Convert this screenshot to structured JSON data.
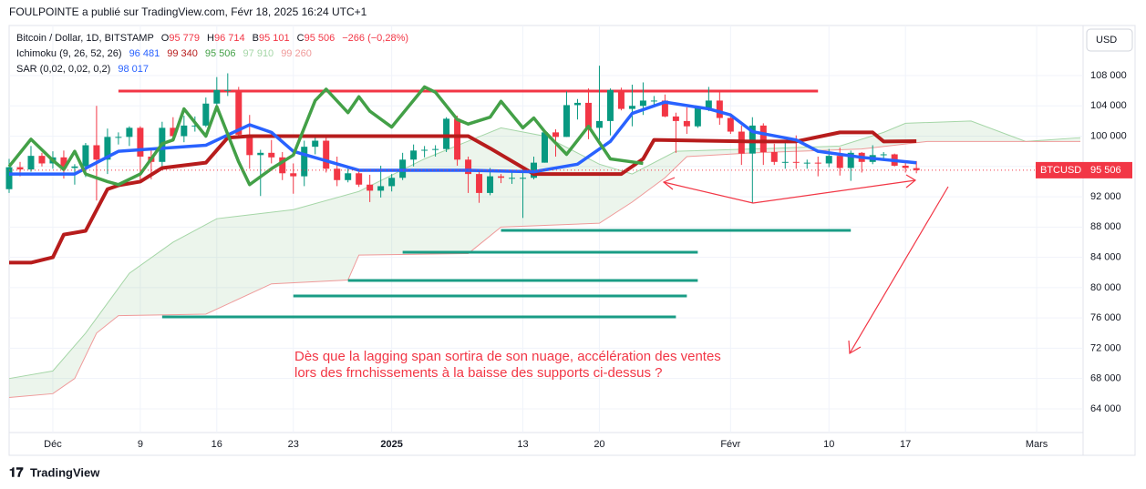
{
  "header": {
    "attribution": "FOULPOINTE a publié sur TradingView.com, Févr 18, 2025 16:24 UTC+1",
    "symbol": "Bitcoin / Dollar, 1D, BITSTAMP",
    "ohlc": [
      {
        "k": "O",
        "v": "95 779"
      },
      {
        "k": "H",
        "v": "96 714"
      },
      {
        "k": "B",
        "v": "95 101"
      },
      {
        "k": "C",
        "v": "95 506"
      },
      {
        "k": "",
        "v": "−266 (−0,28%)"
      }
    ],
    "indicators": [
      {
        "label": "Ichimoku (9, 26, 52, 26)",
        "values": [
          {
            "text": "96 481",
            "color": "#2962ff"
          },
          {
            "text": "99 340",
            "color": "#b71c1c"
          },
          {
            "text": "95 506",
            "color": "#43a047"
          },
          {
            "text": "97 910",
            "color": "#a5d6a7"
          },
          {
            "text": "99 260",
            "color": "#ef9a9a"
          }
        ]
      },
      {
        "label": "SAR (0,02, 0,02, 0,2)",
        "values": [
          {
            "text": "98 017",
            "color": "#2962ff"
          }
        ]
      }
    ],
    "currency": "USD",
    "price_label": {
      "symbol": "BTCUSD",
      "value": "95 506"
    },
    "logo": "TradingView"
  },
  "chart_data": {
    "type": "candlestick",
    "up_color": "#089981",
    "down_color": "#f23645",
    "ylim": [
      61470,
      114370
    ],
    "xlim": [
      -4,
      94
    ],
    "yticks": [
      {
        "value": 64000,
        "label": "64 000"
      },
      {
        "value": 68000,
        "label": "68 000"
      },
      {
        "value": 72000,
        "label": "72 000"
      },
      {
        "value": 76000,
        "label": "76 000"
      },
      {
        "value": 80000,
        "label": "80 000"
      },
      {
        "value": 84000,
        "label": "84 000"
      },
      {
        "value": 88000,
        "label": "88 000"
      },
      {
        "value": 92000,
        "label": "92 000"
      },
      {
        "value": 96000,
        "label": "96 000"
      },
      {
        "value": 100000,
        "label": "100 000"
      },
      {
        "value": 104000,
        "label": "104 000"
      },
      {
        "value": 108000,
        "label": "108 000"
      }
    ],
    "xticks": [
      {
        "value": 0,
        "label": "Déc"
      },
      {
        "value": 8,
        "label": "9"
      },
      {
        "value": 15,
        "label": "16"
      },
      {
        "value": 22,
        "label": "23"
      },
      {
        "value": 31,
        "label": "2025"
      },
      {
        "value": 43,
        "label": "13"
      },
      {
        "value": 50,
        "label": "20"
      },
      {
        "value": 62,
        "label": "Févr"
      },
      {
        "value": 71,
        "label": "10"
      },
      {
        "value": 78,
        "label": "17"
      },
      {
        "value": 90,
        "label": "Mars"
      }
    ],
    "x": [
      -4,
      -3,
      -2,
      -1,
      0,
      1,
      2,
      3,
      4,
      5,
      6,
      7,
      8,
      9,
      10,
      11,
      12,
      13,
      14,
      15,
      16,
      17,
      18,
      19,
      20,
      21,
      22,
      23,
      24,
      25,
      26,
      27,
      28,
      29,
      30,
      31,
      32,
      33,
      34,
      35,
      36,
      37,
      38,
      39,
      40,
      41,
      42,
      43,
      44,
      45,
      46,
      47,
      48,
      49,
      50,
      51,
      52,
      53,
      54,
      55,
      56,
      57,
      58,
      59,
      60,
      61,
      62,
      63,
      64,
      65,
      66,
      67,
      68,
      69,
      70,
      71,
      72,
      73,
      74,
      75,
      76,
      77,
      78,
      79
    ],
    "candles": [
      [
        93000,
        97000,
        92500,
        95900
      ],
      [
        95900,
        96600,
        94700,
        95600
      ],
      [
        95600,
        98700,
        95300,
        97400
      ],
      [
        97400,
        97800,
        96000,
        96400
      ],
      [
        96400,
        98000,
        95700,
        97200
      ],
      [
        97200,
        98100,
        94400,
        95800
      ],
      [
        95800,
        96300,
        93600,
        96000
      ],
      [
        96000,
        99100,
        94600,
        98800
      ],
      [
        98800,
        104000,
        91500,
        96900
      ],
      [
        96900,
        101000,
        95000,
        99900
      ],
      [
        99900,
        100500,
        98900,
        99900
      ],
      [
        99900,
        101300,
        98700,
        101100
      ],
      [
        101100,
        101300,
        94200,
        97300
      ],
      [
        97300,
        98200,
        94300,
        96600
      ],
      [
        96600,
        101900,
        95600,
        101100
      ],
      [
        101100,
        102500,
        99300,
        100000
      ],
      [
        100000,
        102700,
        99200,
        101400
      ],
      [
        101400,
        102600,
        100600,
        101400
      ],
      [
        101400,
        105100,
        101200,
        104300
      ],
      [
        104300,
        107800,
        103300,
        106100
      ],
      [
        106100,
        108300,
        105300,
        106100
      ],
      [
        106100,
        106500,
        100000,
        100200
      ],
      [
        100200,
        102800,
        95700,
        97500
      ],
      [
        97500,
        98200,
        92100,
        97800
      ],
      [
        97800,
        99500,
        96400,
        97200
      ],
      [
        97200,
        97900,
        94200,
        95100
      ],
      [
        95100,
        96400,
        92400,
        94700
      ],
      [
        94700,
        99400,
        93400,
        98600
      ],
      [
        98600,
        99900,
        97600,
        99400
      ],
      [
        99400,
        99900,
        95200,
        95700
      ],
      [
        95700,
        97300,
        93400,
        94200
      ],
      [
        94200,
        95700,
        93900,
        95100
      ],
      [
        95100,
        95300,
        93300,
        93600
      ],
      [
        93600,
        94900,
        91300,
        92800
      ],
      [
        92800,
        96100,
        91900,
        93400
      ],
      [
        93400,
        95000,
        92700,
        94500
      ],
      [
        94500,
        97800,
        94200,
        96900
      ],
      [
        96900,
        98900,
        96000,
        98100
      ],
      [
        98100,
        98700,
        97200,
        98200
      ],
      [
        98200,
        98800,
        97300,
        98300
      ],
      [
        98300,
        102500,
        97900,
        102300
      ],
      [
        102300,
        102700,
        96100,
        96900
      ],
      [
        96900,
        97300,
        92500,
        95000
      ],
      [
        95000,
        95400,
        91200,
        92500
      ],
      [
        92500,
        95800,
        92200,
        94700
      ],
      [
        94700,
        95000,
        93800,
        94500
      ],
      [
        94500,
        95400,
        93700,
        94500
      ],
      [
        94500,
        95900,
        89200,
        94500
      ],
      [
        94500,
        97300,
        94300,
        96500
      ],
      [
        96500,
        100700,
        96500,
        100500
      ],
      [
        100500,
        100900,
        97300,
        99900
      ],
      [
        99900,
        105900,
        99900,
        104100
      ],
      [
        104100,
        104900,
        102200,
        104400
      ],
      [
        104400,
        106300,
        99600,
        101100
      ],
      [
        101100,
        109300,
        99500,
        102000
      ],
      [
        102000,
        106300,
        100100,
        106100
      ],
      [
        106100,
        106400,
        103400,
        103600
      ],
      [
        103600,
        106800,
        101300,
        104000
      ],
      [
        104000,
        107100,
        102800,
        104700
      ],
      [
        104700,
        105300,
        104100,
        104700
      ],
      [
        104700,
        105500,
        102500,
        102600
      ],
      [
        102600,
        103100,
        97800,
        102000
      ],
      [
        102000,
        103800,
        100300,
        101300
      ],
      [
        101300,
        104000,
        101100,
        103700
      ],
      [
        103700,
        106500,
        103300,
        104700
      ],
      [
        104700,
        106000,
        101500,
        102400
      ],
      [
        102400,
        102800,
        100300,
        100600
      ],
      [
        100600,
        101400,
        96200,
        97700
      ],
      [
        97700,
        102500,
        91200,
        101400
      ],
      [
        101400,
        101700,
        96200,
        97900
      ],
      [
        97900,
        99000,
        96200,
        96600
      ],
      [
        96600,
        99200,
        95700,
        96600
      ],
      [
        96600,
        100100,
        95700,
        96500
      ],
      [
        96500,
        96900,
        95700,
        96500
      ],
      [
        96500,
        97300,
        94700,
        96400
      ],
      [
        96400,
        98300,
        95900,
        97400
      ],
      [
        97400,
        98500,
        94800,
        95800
      ],
      [
        95800,
        98100,
        94100,
        97800
      ],
      [
        97800,
        97900,
        95200,
        96600
      ],
      [
        96600,
        98800,
        96300,
        97500
      ],
      [
        97500,
        97900,
        97100,
        97600
      ],
      [
        97600,
        97700,
        96000,
        96100
      ],
      [
        96100,
        96700,
        95200,
        95800
      ],
      [
        95779,
        96714,
        95101,
        95506
      ]
    ],
    "cloud": {
      "color": "#43a047",
      "span_a": {
        "color": "#a5d6a7",
        "x": [
          -4,
          0,
          3,
          7,
          11,
          15,
          22,
          28,
          34,
          41,
          45,
          50,
          53,
          57,
          66,
          72,
          76,
          78,
          84,
          89,
          94
        ],
        "values": [
          68000,
          69000,
          74000,
          81900,
          86000,
          89100,
          90300,
          92700,
          97000,
          101100,
          100000,
          96300,
          95000,
          98000,
          98400,
          98700,
          100500,
          101700,
          102000,
          99300,
          99800
        ]
      },
      "span_b": {
        "color": "#ef9a9a",
        "x": [
          -4,
          0,
          2,
          4,
          6,
          14,
          20,
          27,
          28,
          38,
          41,
          50,
          53,
          56,
          58,
          64,
          74,
          80,
          94
        ],
        "values": [
          65500,
          66000,
          68000,
          74000,
          76300,
          76500,
          80500,
          81000,
          84300,
          84500,
          88000,
          88500,
          91300,
          94500,
          97300,
          97800,
          98300,
          99300,
          99300
        ]
      }
    },
    "series": [
      {
        "color": "#b71c1c",
        "width": 4,
        "x": [
          -4,
          -2,
          0,
          1,
          3,
          5,
          6,
          8,
          10,
          14,
          16,
          18,
          38,
          40,
          44,
          52,
          54,
          55,
          64,
          68,
          72,
          75,
          76,
          79
        ],
        "values": [
          83300,
          83300,
          84000,
          87000,
          87500,
          93000,
          93500,
          94000,
          95800,
          96500,
          99800,
          100000,
          100000,
          98400,
          95000,
          95000,
          97000,
          99500,
          99300,
          99300,
          100500,
          100500,
          99300,
          99340
        ]
      },
      {
        "color": "#2962ff",
        "width": 3.5,
        "x": [
          -4,
          2,
          6,
          14,
          18,
          20,
          22,
          28,
          38,
          44,
          48,
          51,
          53,
          56,
          60,
          62,
          64,
          68,
          70,
          74,
          79
        ],
        "values": [
          95000,
          95000,
          98000,
          98800,
          101500,
          100500,
          98000,
          95500,
          95500,
          95300,
          96300,
          99300,
          103000,
          104500,
          103600,
          102800,
          100600,
          99500,
          98000,
          97200,
          96481
        ]
      },
      {
        "color": "#43a047",
        "width": 3.5,
        "x": [
          -4,
          -2,
          0,
          1,
          2,
          3,
          5,
          6,
          8,
          10,
          11,
          12,
          14,
          15,
          17,
          18,
          20,
          22,
          24,
          25,
          27,
          28,
          29,
          31,
          34,
          35,
          37,
          38,
          40,
          41,
          43,
          44,
          45,
          47,
          49,
          51,
          53,
          54
        ],
        "values": [
          96000,
          99600,
          96800,
          95600,
          98000,
          95000,
          94000,
          93600,
          95000,
          99000,
          99500,
          103600,
          100000,
          103900,
          96600,
          93600,
          95700,
          97500,
          104700,
          106200,
          103100,
          105200,
          103300,
          101200,
          106500,
          105800,
          102200,
          101600,
          102500,
          104600,
          101100,
          102400,
          100600,
          97600,
          101300,
          97000,
          96600,
          96400
        ]
      }
    ],
    "levels": [
      {
        "color": "#f23645",
        "value": 105950,
        "x": [
          6,
          70
        ]
      },
      {
        "color": "#1a9c85",
        "value": 87560,
        "x": [
          41,
          73
        ]
      },
      {
        "color": "#1a9c85",
        "value": 84680,
        "x": [
          32,
          59
        ]
      },
      {
        "color": "#1a9c85",
        "value": 80950,
        "x": [
          27,
          59
        ]
      },
      {
        "color": "#1a9c85",
        "value": 78900,
        "x": [
          22,
          58
        ]
      },
      {
        "color": "#1a9c85",
        "value": 76140,
        "x": [
          10,
          57
        ]
      }
    ],
    "last_price": 95506,
    "annotation": [
      "Dès que la lagging span sortira de son nuage, accélération des ventes",
      "lors des frnchissements à la baisse des supports ci-dessus ?"
    ]
  }
}
